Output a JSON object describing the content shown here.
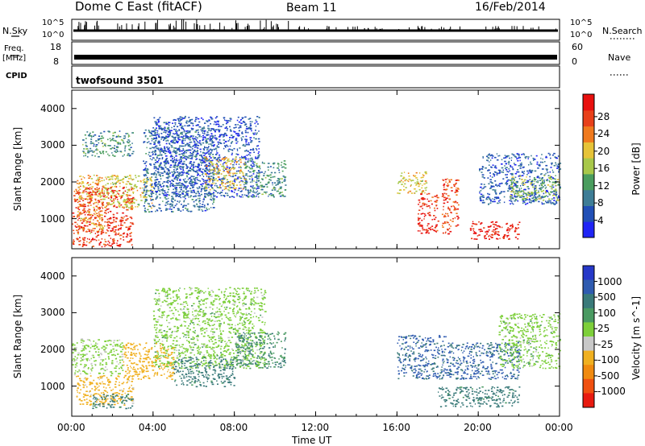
{
  "header": {
    "station": "Dome C East (fitACF)",
    "beam": "Beam 11",
    "date": "16/Feb/2014"
  },
  "top_panels": {
    "nsky_label": "N.Sky",
    "nsky_ticks": [
      "10^5",
      "10^0"
    ],
    "nsearch_label": "N.Search",
    "nsearch_ticks": [
      "10^5",
      "10^0"
    ],
    "freq_label": "Freq.",
    "freq_unit": "[MHz]",
    "freq_ticks": [
      "18",
      "8"
    ],
    "nave_label": "Nave",
    "nave_ticks": [
      "60",
      "0"
    ],
    "cpid_label": "CPID",
    "cpid_value": "twofsound 3501"
  },
  "colors": {
    "power_scale": [
      "#1f24f5",
      "#214fb6",
      "#3e7d96",
      "#4a9d5e",
      "#a8c84a",
      "#e6c338",
      "#f07a1e",
      "#e8401a",
      "#e8100e"
    ],
    "velocity_scale": [
      "#2638c8",
      "#2f5bb0",
      "#3a7a7a",
      "#4a9a62",
      "#7dcf3a",
      "#c8c8c8",
      "#f0b020",
      "#f08a10",
      "#f05010",
      "#e81a10"
    ]
  },
  "chart_data": [
    {
      "type": "heatmap",
      "name": "power",
      "ylabel": "Slant Range [km]",
      "xlabel": "",
      "xlim": [
        0,
        24
      ],
      "ylim": [
        180,
        4500
      ],
      "x_ticks": [
        "00:00",
        "04:00",
        "08:00",
        "12:00",
        "16:00",
        "20:00",
        "00:00"
      ],
      "y_ticks": [
        1000,
        2000,
        3000,
        4000
      ],
      "colorbar": {
        "label": "Power [dB]",
        "ticks": [
          4,
          8,
          12,
          16,
          20,
          24,
          28
        ],
        "range": [
          0,
          30
        ]
      },
      "regions": [
        {
          "t0": 0.0,
          "t1": 3.0,
          "r0": 250,
          "r1": 1900,
          "value": 26
        },
        {
          "t0": 0.2,
          "t1": 1.5,
          "r0": 600,
          "r1": 2200,
          "value": 20
        },
        {
          "t0": 1.5,
          "t1": 4.0,
          "r0": 1300,
          "r1": 2200,
          "value": 17
        },
        {
          "t0": 0.5,
          "t1": 3.0,
          "r0": 2700,
          "r1": 3400,
          "value": 10
        },
        {
          "t0": 3.5,
          "t1": 7.0,
          "r0": 1200,
          "r1": 3500,
          "value": 7
        },
        {
          "t0": 4.0,
          "t1": 9.2,
          "r0": 1600,
          "r1": 3800,
          "value": 5
        },
        {
          "t0": 6.5,
          "t1": 8.5,
          "r0": 1800,
          "r1": 2700,
          "value": 18
        },
        {
          "t0": 8.5,
          "t1": 10.5,
          "r0": 1600,
          "r1": 2600,
          "value": 10
        },
        {
          "t0": 16.0,
          "t1": 17.5,
          "r0": 1700,
          "r1": 2300,
          "value": 17
        },
        {
          "t0": 17.0,
          "t1": 18.0,
          "r0": 600,
          "r1": 1700,
          "value": 27
        },
        {
          "t0": 18.2,
          "t1": 19.0,
          "r0": 600,
          "r1": 2100,
          "value": 25
        },
        {
          "t0": 19.5,
          "t1": 22.0,
          "r0": 450,
          "r1": 950,
          "value": 28
        },
        {
          "t0": 20.0,
          "t1": 24.0,
          "r0": 1400,
          "r1": 2800,
          "value": 6
        },
        {
          "t0": 21.5,
          "t1": 24.0,
          "r0": 1500,
          "r1": 2200,
          "value": 14
        }
      ]
    },
    {
      "type": "heatmap",
      "name": "velocity",
      "ylabel": "Slant Range [km]",
      "xlabel": "Time UT",
      "xlim": [
        0,
        24
      ],
      "ylim": [
        180,
        4500
      ],
      "x_ticks": [
        "00:00",
        "04:00",
        "08:00",
        "12:00",
        "16:00",
        "20:00",
        "00:00"
      ],
      "y_ticks": [
        1000,
        2000,
        3000,
        4000
      ],
      "colorbar": {
        "label": "Velocity [m s^-1]",
        "ticks": [
          "1000",
          "500",
          "100",
          "25",
          "-25",
          "-100",
          "-500",
          "-1000"
        ]
      },
      "regions": [
        {
          "t0": 0.0,
          "t1": 2.5,
          "r0": 1300,
          "r1": 2300,
          "value": -10
        },
        {
          "t0": 0.2,
          "t1": 3.0,
          "r0": 500,
          "r1": 1300,
          "value": -200
        },
        {
          "t0": 1.0,
          "t1": 3.0,
          "r0": 400,
          "r1": 800,
          "value": 150
        },
        {
          "t0": 2.5,
          "t1": 5.0,
          "r0": 1200,
          "r1": 2200,
          "value": -300
        },
        {
          "t0": 4.0,
          "t1": 9.5,
          "r0": 1500,
          "r1": 3700,
          "value": 0
        },
        {
          "t0": 5.0,
          "t1": 8.0,
          "r0": 1000,
          "r1": 1800,
          "value": 200
        },
        {
          "t0": 8.0,
          "t1": 10.5,
          "r0": 1500,
          "r1": 2500,
          "value": 100
        },
        {
          "t0": 16.0,
          "t1": 18.5,
          "r0": 1200,
          "r1": 2400,
          "value": 600
        },
        {
          "t0": 18.0,
          "t1": 22.0,
          "r0": 450,
          "r1": 1000,
          "value": 200
        },
        {
          "t0": 18.5,
          "t1": 22.0,
          "r0": 1200,
          "r1": 2200,
          "value": 600
        },
        {
          "t0": 21.0,
          "t1": 24.0,
          "r0": 1500,
          "r1": 3000,
          "value": 0
        }
      ]
    }
  ]
}
